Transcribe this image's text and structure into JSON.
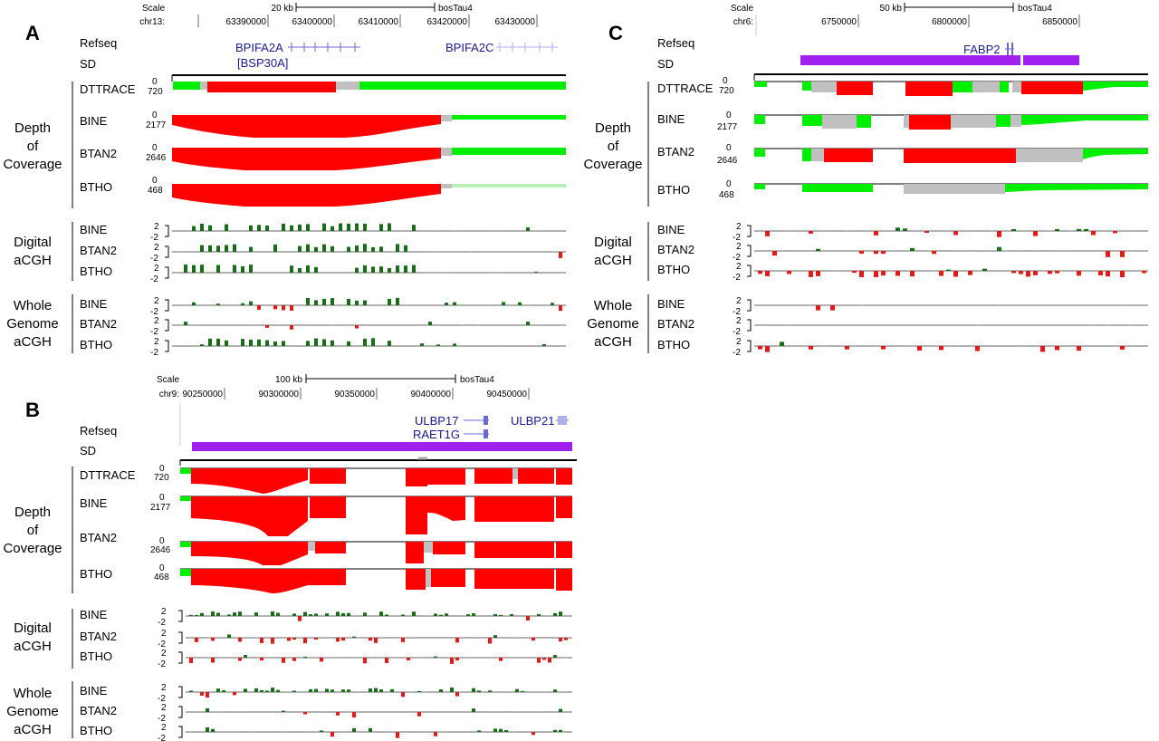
{
  "colors": {
    "gain": "#ff0000",
    "loss": "#00ee00",
    "ambiguous": "#c0c0c0",
    "sd": "#a020f0",
    "gene": "#1a1a8a",
    "agcgh_up": "#1a6b1a",
    "agcgh_down": "#e31a1a"
  },
  "panels": [
    {
      "letter": "A",
      "scale_word": "Scale",
      "scale_len": "20 kb",
      "assembly": "bosTau4",
      "chrom": "chr13:",
      "ticks": [
        "63390000",
        "63400000",
        "63410000",
        "63420000",
        "63430000"
      ],
      "refseq_label": "Refseq",
      "sd_label": "SD",
      "genes": [
        "BPIFA2A",
        "[BSP30A]",
        "BPIFA2C"
      ],
      "depth_group": [
        "Depth",
        "of",
        "Coverage"
      ],
      "depth_tracks": [
        {
          "name": "DTTRACE",
          "max": "720",
          "min": "0"
        },
        {
          "name": "BINE",
          "max": "2177",
          "min": "0"
        },
        {
          "name": "BTAN2",
          "max": "2646",
          "min": "0"
        },
        {
          "name": "BTHO",
          "max": "468",
          "min": "0"
        }
      ],
      "digital_group": [
        "Digital",
        "aCGH"
      ],
      "wg_group": [
        "Whole",
        "Genome",
        "aCGH"
      ],
      "acgh_tracks": [
        "BINE",
        "BTAN2",
        "BTHO"
      ],
      "acgh_scale": [
        "2",
        "-2"
      ]
    },
    {
      "letter": "B",
      "scale_word": "Scale",
      "scale_len": "100 kb",
      "assembly": "bosTau4",
      "chrom": "chr9:",
      "ticks": [
        "90250000",
        "90300000",
        "90350000",
        "90400000",
        "90450000"
      ],
      "refseq_label": "Refseq",
      "sd_label": "SD",
      "genes": [
        "ULBP17",
        "RAET1G",
        "ULBP21"
      ],
      "depth_group": [
        "Depth",
        "of",
        "Coverage"
      ],
      "depth_tracks": [
        {
          "name": "DTTRACE",
          "max": "720",
          "min": "0"
        },
        {
          "name": "BINE",
          "max": "2177",
          "min": "0"
        },
        {
          "name": "BTAN2",
          "max": "2646",
          "min": "0"
        },
        {
          "name": "BTHO",
          "max": "468",
          "min": "0"
        }
      ],
      "digital_group": [
        "Digital",
        "aCGH"
      ],
      "wg_group": [
        "Whole",
        "Genome",
        "aCGH"
      ],
      "acgh_tracks": [
        "BINE",
        "BTAN2",
        "BTHO"
      ],
      "acgh_scale": [
        "2",
        "-2"
      ]
    },
    {
      "letter": "C",
      "scale_word": "Scale",
      "scale_len": "50 kb",
      "assembly": "bosTau4",
      "chrom": "chr6:",
      "ticks": [
        "6750000",
        "6800000",
        "6850000"
      ],
      "refseq_label": "Refseq",
      "sd_label": "SD",
      "genes": [
        "FABP2"
      ],
      "depth_group": [
        "Depth",
        "of",
        "Coverage"
      ],
      "depth_tracks": [
        {
          "name": "DTTRACE",
          "max": "720",
          "min": "0"
        },
        {
          "name": "BINE",
          "max": "2177",
          "min": "0"
        },
        {
          "name": "BTAN2",
          "max": "2646",
          "min": "0"
        },
        {
          "name": "BTHO",
          "max": "468",
          "min": "0"
        }
      ],
      "digital_group": [
        "Digital",
        "aCGH"
      ],
      "wg_group": [
        "Whole",
        "Genome",
        "aCGH"
      ],
      "acgh_tracks": [
        "BINE",
        "BTAN2",
        "BTHO"
      ],
      "acgh_scale": [
        "2",
        "-2"
      ]
    }
  ]
}
